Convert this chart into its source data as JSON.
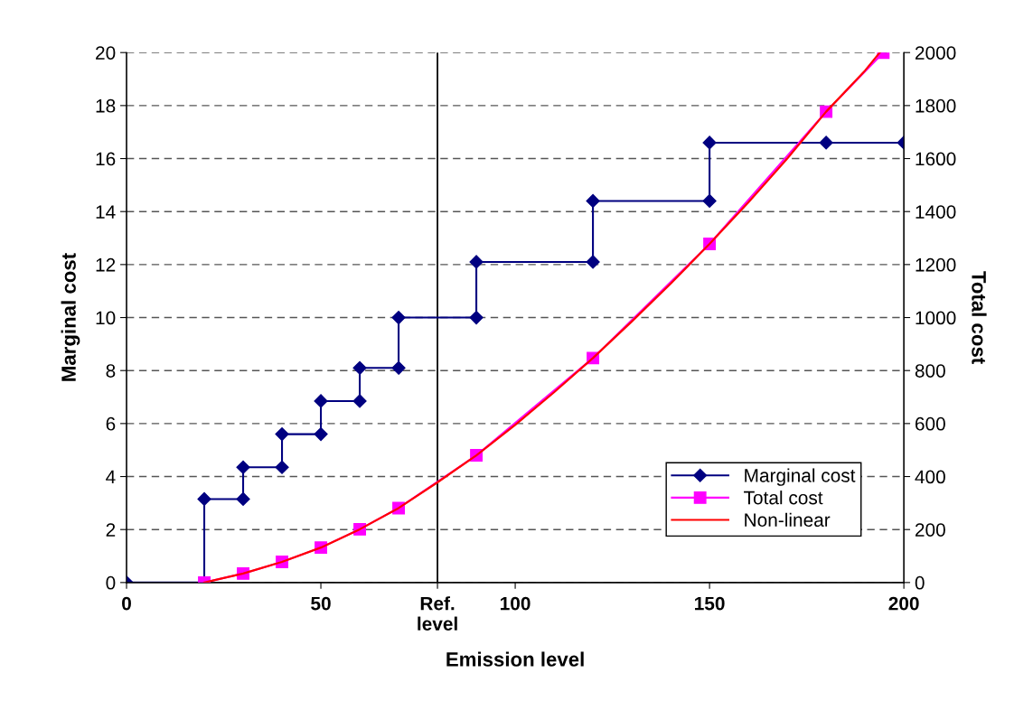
{
  "chart_data": {
    "type": "line",
    "xlabel": "Emission level",
    "ylabel": "Marginal cost",
    "y2label": "Total cost",
    "xlim": [
      0,
      200
    ],
    "xticks": [
      0,
      50,
      {
        "value": 80,
        "label": "Ref.\nlevel"
      },
      100,
      150,
      200
    ],
    "ylim": [
      0,
      20
    ],
    "yticks": [
      0,
      2,
      4,
      6,
      8,
      10,
      12,
      14,
      16,
      18,
      20
    ],
    "y2lim": [
      0,
      2000
    ],
    "y2ticks": [
      0,
      200,
      400,
      600,
      800,
      1000,
      1200,
      1400,
      1600,
      1800,
      2000
    ],
    "grid": "y",
    "legend": "bottom right",
    "ref_lines": [
      {
        "axis": "x",
        "value": 80,
        "color": "#000000"
      }
    ],
    "series": [
      {
        "name": "Marginal cost",
        "color": "#000080",
        "marker": "diamond",
        "x": [
          0,
          20,
          20,
          30,
          30,
          40,
          40,
          50,
          50,
          60,
          60,
          70,
          70,
          90,
          90,
          120,
          120,
          150,
          150,
          180,
          200
        ],
        "values": [
          0,
          0,
          3.15,
          3.15,
          4.35,
          4.35,
          5.6,
          5.6,
          6.85,
          6.85,
          8.1,
          8.1,
          10,
          10,
          12.1,
          12.1,
          14.4,
          14.4,
          16.6,
          16.6,
          16.6
        ]
      },
      {
        "name": "Total cost",
        "color": "#ff00ff",
        "marker": "square",
        "axis": "y2",
        "x": [
          20,
          30,
          40,
          50,
          60,
          70,
          90,
          120,
          150,
          180,
          194.7
        ],
        "values": [
          0,
          34,
          78,
          132,
          201,
          281,
          480,
          847,
          1278,
          1777,
          2000
        ]
      },
      {
        "name": "Non-linear",
        "color": "#ff0000",
        "marker": "none",
        "axis": "y2",
        "x": [
          20,
          30,
          40,
          50,
          60,
          70,
          80,
          90,
          100,
          110,
          120,
          130,
          140,
          150,
          160,
          170,
          180,
          190,
          193.8
        ],
        "values": [
          0,
          34,
          78,
          132,
          201,
          281,
          378,
          480,
          595,
          718,
          847,
          985,
          1128,
          1278,
          1435,
          1600,
          1777,
          1932,
          2000
        ]
      }
    ]
  }
}
